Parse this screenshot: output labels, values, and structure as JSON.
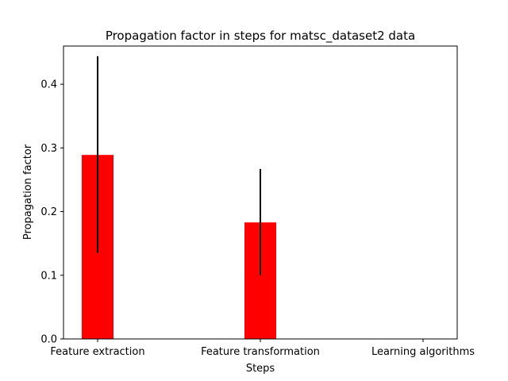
{
  "chart_data": {
    "type": "bar",
    "title": "Propagation factor in steps for matsc_dataset2 data",
    "xlabel": "Steps",
    "ylabel": "Propagation factor",
    "categories": [
      "Feature extraction",
      "Feature transformation",
      "Learning algorithms"
    ],
    "values": [
      0.289,
      0.183,
      0.0
    ],
    "error_low": [
      0.135,
      0.1,
      0.0
    ],
    "error_high": [
      0.444,
      0.267,
      0.0
    ],
    "ylim": [
      0,
      0.46
    ],
    "yticks": [
      "0.0",
      "0.1",
      "0.2",
      "0.3",
      "0.4"
    ],
    "ytick_values": [
      0,
      0.1,
      0.2,
      0.3,
      0.4
    ],
    "bar_color": "#ff0000",
    "error_color": "#000000",
    "grid": false
  }
}
